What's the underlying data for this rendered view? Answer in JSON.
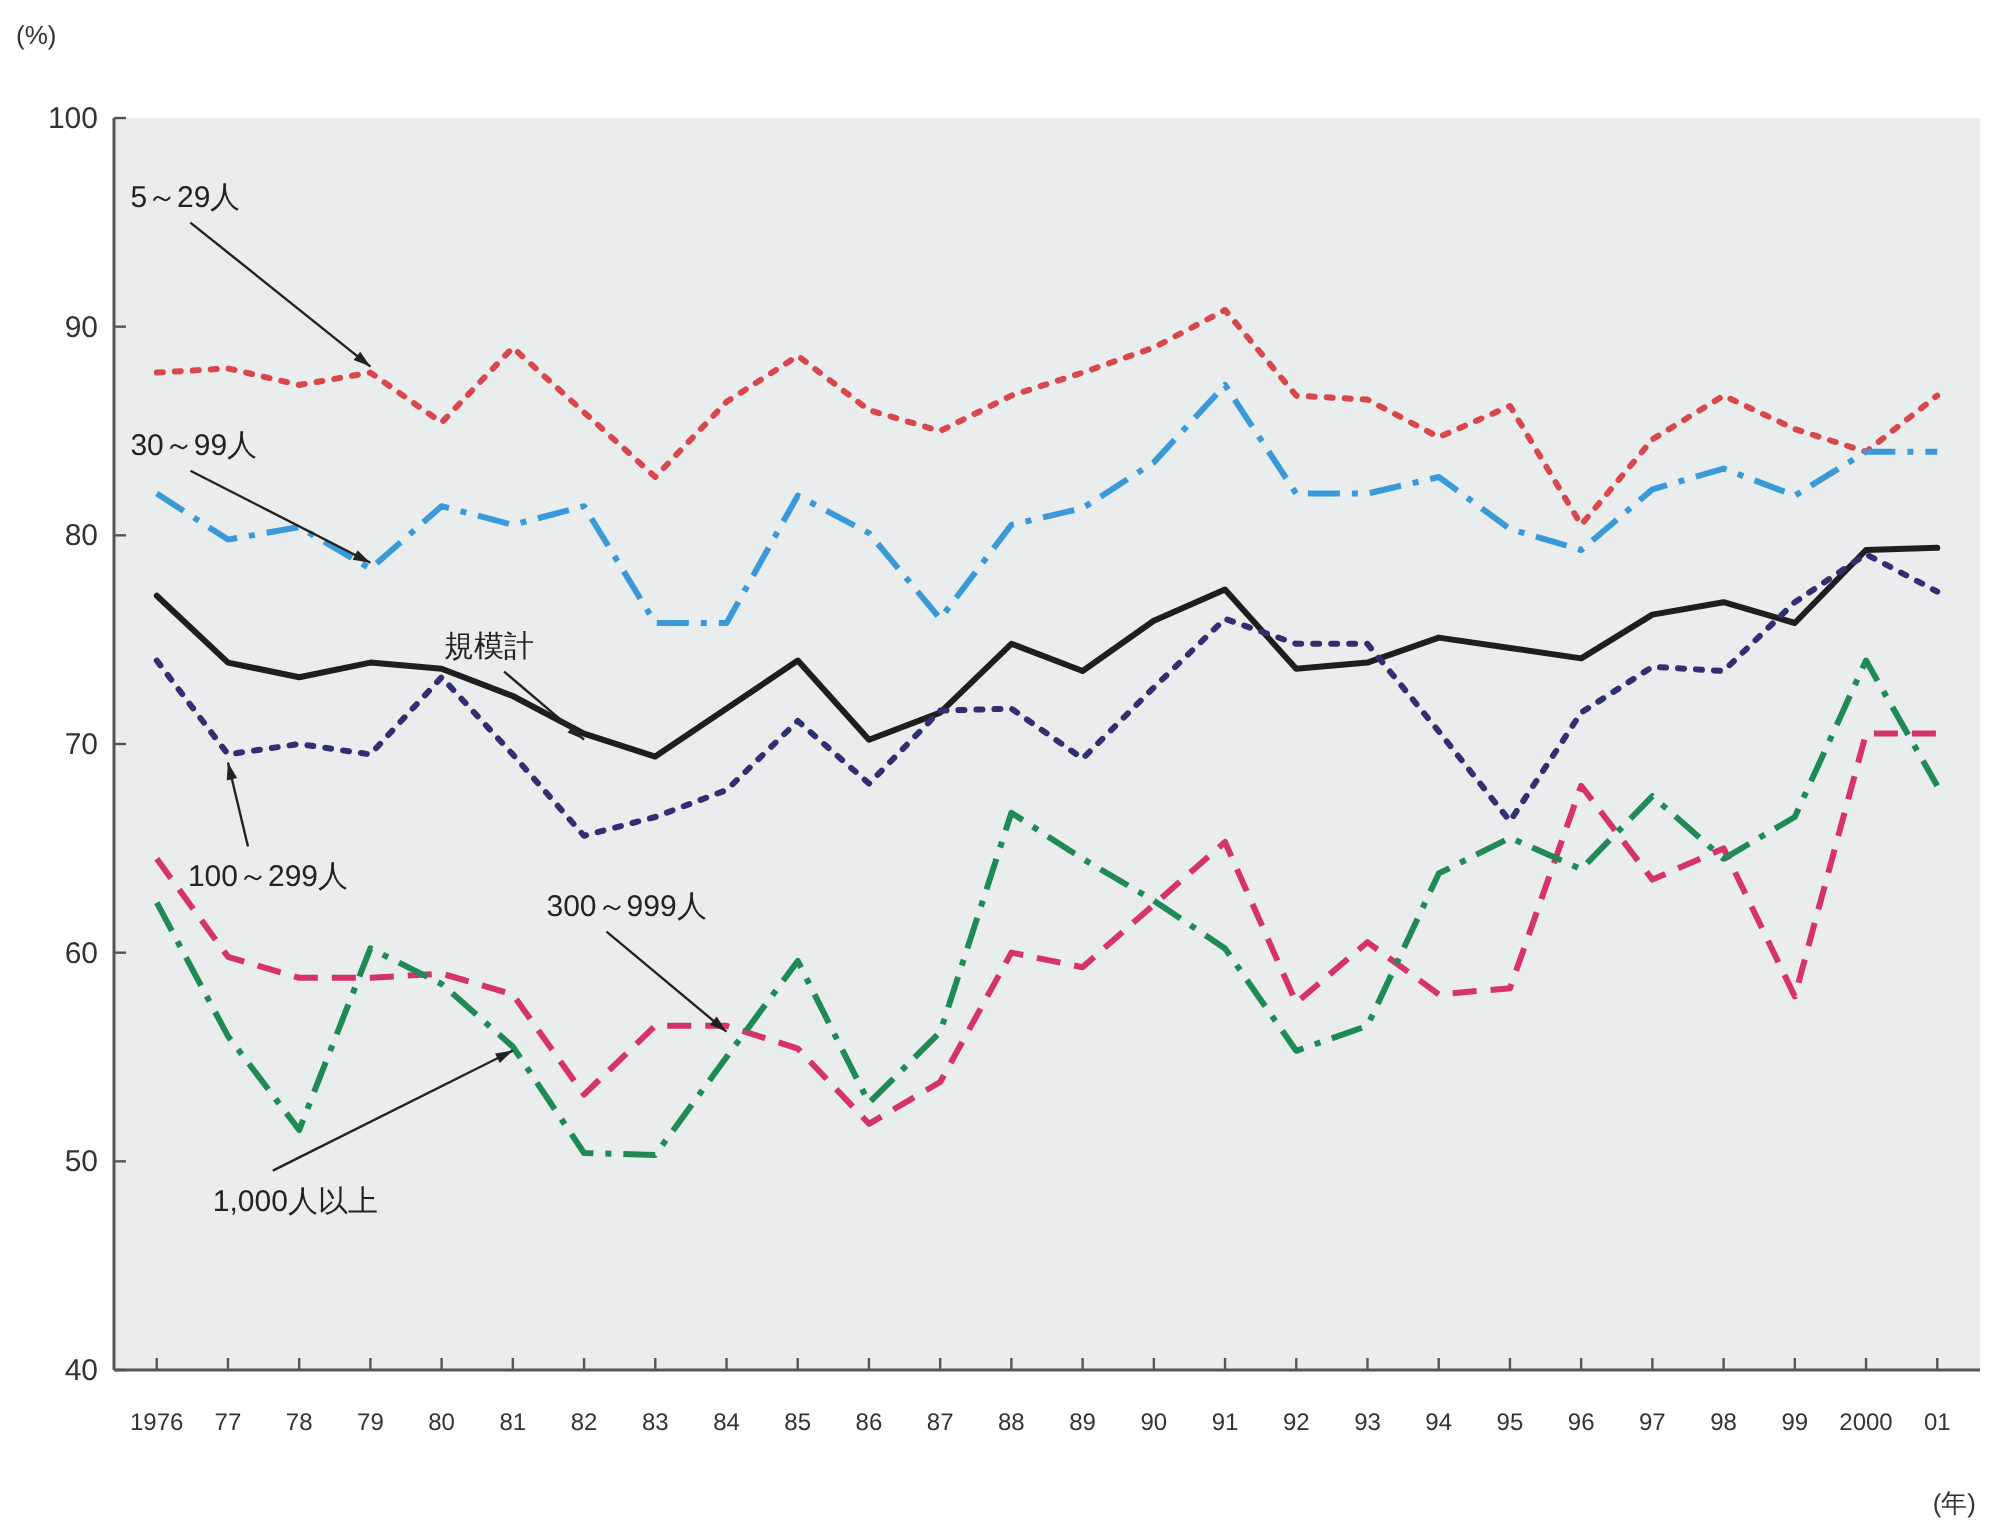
{
  "chart_data": {
    "type": "line",
    "ylabel": "(%)",
    "xlabel": "(年)",
    "categories": [
      "1976",
      "77",
      "78",
      "79",
      "80",
      "81",
      "82",
      "83",
      "84",
      "85",
      "86",
      "87",
      "88",
      "89",
      "90",
      "91",
      "92",
      "93",
      "94",
      "95",
      "96",
      "97",
      "98",
      "99",
      "2000",
      "01"
    ],
    "ylim": [
      40,
      100
    ],
    "yticks": [
      40,
      50,
      60,
      70,
      80,
      90,
      100
    ],
    "series": [
      {
        "name": "5～29人",
        "color": "#d9474c",
        "line_style": "dotted",
        "values": [
          87.8,
          88.0,
          87.2,
          87.8,
          85.4,
          89.0,
          85.9,
          82.8,
          86.4,
          88.6,
          86.0,
          85.0,
          86.7,
          87.8,
          89.0,
          90.8,
          86.7,
          86.5,
          84.7,
          86.2,
          80.5,
          84.6,
          86.7,
          85.1,
          84.0,
          86.7
        ]
      },
      {
        "name": "30～99人",
        "color": "#3a9ad9",
        "line_style": "dashdot",
        "values": [
          82.0,
          79.8,
          80.4,
          78.4,
          81.4,
          80.5,
          81.4,
          75.8,
          75.8,
          81.9,
          80.1,
          76.0,
          80.5,
          81.3,
          83.5,
          87.2,
          82.0,
          82.0,
          82.8,
          80.3,
          79.3,
          82.2,
          83.2,
          81.9,
          84.0,
          84.0
        ]
      },
      {
        "name": "規模計",
        "color": "#1e1e1e",
        "line_style": "solid",
        "values": [
          77.1,
          73.9,
          73.2,
          73.9,
          73.6,
          72.3,
          70.5,
          69.4,
          71.7,
          74.0,
          70.2,
          71.5,
          74.8,
          73.5,
          75.9,
          77.4,
          73.6,
          73.9,
          75.1,
          74.6,
          74.1,
          76.2,
          76.8,
          75.8,
          79.3,
          79.4
        ]
      },
      {
        "name": "100～299人",
        "color": "#2e3170",
        "line_style": "dotted",
        "values": [
          74.0,
          69.5,
          70.0,
          69.5,
          73.2,
          69.5,
          65.6,
          66.5,
          67.8,
          71.1,
          68.1,
          71.6,
          71.7,
          69.3,
          72.7,
          76.0,
          74.8,
          74.8,
          70.6,
          66.3,
          71.5,
          73.7,
          73.5,
          76.8,
          79.1,
          77.3
        ]
      },
      {
        "name": "300～999人",
        "color": "#d6336b",
        "line_style": "dashed",
        "values": [
          64.5,
          59.8,
          58.8,
          58.8,
          59.0,
          58.0,
          53.2,
          56.5,
          56.5,
          55.4,
          51.8,
          53.8,
          60.0,
          59.3,
          62.3,
          65.3,
          57.6,
          60.5,
          58.0,
          58.3,
          68.0,
          63.5,
          65.0,
          57.9,
          70.5,
          70.5
        ]
      },
      {
        "name": "1,000人以上",
        "color": "#1e8a55",
        "line_style": "dashdot",
        "values": [
          62.4,
          56.0,
          51.5,
          60.2,
          58.5,
          55.5,
          50.4,
          50.3,
          55.0,
          59.6,
          52.8,
          56.2,
          66.7,
          64.5,
          62.5,
          60.2,
          55.3,
          56.5,
          63.8,
          65.5,
          64.0,
          67.5,
          64.5,
          66.5,
          74.0,
          68.0
        ]
      }
    ]
  }
}
